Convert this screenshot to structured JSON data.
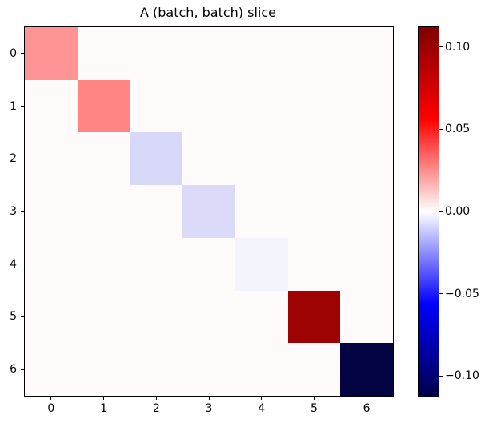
{
  "figure": {
    "title": "A (batch, batch) slice"
  },
  "chart_data": {
    "type": "heatmap",
    "title": "A (batch, batch) slice",
    "x_tick_labels": [
      "0",
      "1",
      "2",
      "3",
      "4",
      "5",
      "6"
    ],
    "y_tick_labels": [
      "0",
      "1",
      "2",
      "3",
      "4",
      "5",
      "6"
    ],
    "matrix_size": 7,
    "matrix": [
      [
        0.023,
        0,
        0,
        0,
        0,
        0,
        0
      ],
      [
        0,
        0.027,
        0,
        0,
        0,
        0,
        0
      ],
      [
        0,
        0,
        -0.009,
        0,
        0,
        0,
        0
      ],
      [
        0,
        0,
        0,
        -0.008,
        0,
        0,
        0
      ],
      [
        0,
        0,
        0,
        0,
        -0.002,
        0,
        0
      ],
      [
        0,
        0,
        0,
        0,
        0,
        0.099,
        0
      ],
      [
        0,
        0,
        0,
        0,
        0,
        0,
        -0.112
      ]
    ],
    "diagonal_values": [
      0.023,
      0.027,
      -0.009,
      -0.008,
      -0.002,
      0.099,
      -0.112
    ],
    "diagonal_colors": [
      "#FF9494",
      "#FF8585",
      "#D8D8F9",
      "#DBDBF9",
      "#F4F4FD",
      "#9D0303",
      "#040442"
    ],
    "off_diagonal_color": "#FFFBFB",
    "colormap": "seismic",
    "grid": false,
    "colorbar": {
      "position": "right",
      "vmin": -0.112,
      "vmax": 0.112,
      "ticks": [
        {
          "label": "0.10",
          "value": 0.1
        },
        {
          "label": "0.05",
          "value": 0.05
        },
        {
          "label": "0.00",
          "value": 0.0
        },
        {
          "label": "−0.05",
          "value": -0.05
        },
        {
          "label": "−0.10",
          "value": -0.1
        }
      ],
      "gradient_stops": [
        {
          "color": "#00004C",
          "pos": 0
        },
        {
          "color": "#0000FF",
          "pos": 25
        },
        {
          "color": "#FFFFFF",
          "pos": 50
        },
        {
          "color": "#FF0000",
          "pos": 75
        },
        {
          "color": "#800000",
          "pos": 100
        }
      ]
    }
  }
}
